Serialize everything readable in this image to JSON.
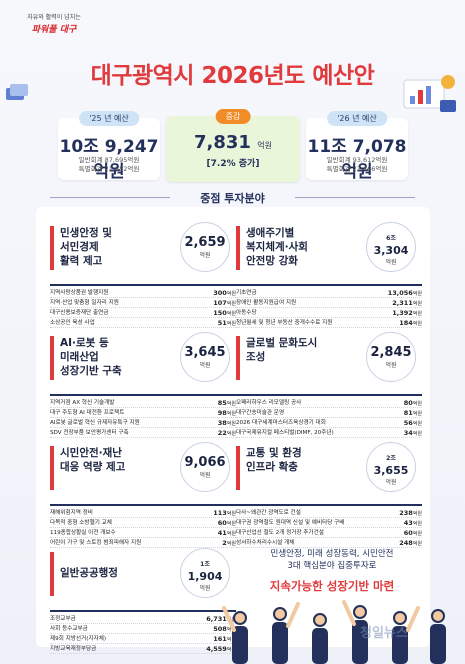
{
  "slogan": {
    "line1": "자유와 활력이 넘치는",
    "line2": "파워풀 대구"
  },
  "title": "대구광역시 2026년도 예산안",
  "budget_25": {
    "label": "'25 년 예산",
    "total": "10조 9,247억원",
    "general": "일반회계 87,695억원",
    "special": "특별회계 21,552억원"
  },
  "increase": {
    "label": "증감",
    "amount": "7,831",
    "unit": "억원",
    "pct": "[7.2% 증가]"
  },
  "budget_26": {
    "label": "'26 년 예산",
    "total": "11조 7,078억원",
    "general": "일반회계 93,612억원",
    "special": "특별회계 23,466억원"
  },
  "focus_title": "중점 투자분야",
  "sections": [
    {
      "name": "민생안정 및\n서민경제\n활력 제고",
      "amount": "2,659",
      "amount_unit": "억원",
      "items": [
        {
          "label": "지역사랑상품권 발행지원",
          "value": "300",
          "unit": "억원"
        },
        {
          "label": "지역·산업 맞춤형 일자리 지원",
          "value": "107",
          "unit": "억원"
        },
        {
          "label": "대구신용보증재단 출연금",
          "value": "150",
          "unit": "억원"
        },
        {
          "label": "소상공인 육성 사업",
          "value": "51",
          "unit": "억원"
        }
      ]
    },
    {
      "name": "생애주기별\n복지체계·사회\n안전망 강화",
      "amount_jo": "6조",
      "amount": "3,304",
      "amount_unit": "억원",
      "items": [
        {
          "label": "기초연금",
          "value": "13,056",
          "unit": "억원"
        },
        {
          "label": "장애인 활동지원급여 지원",
          "value": "2,311",
          "unit": "억원"
        },
        {
          "label": "아동수당",
          "value": "1,392",
          "unit": "억원"
        },
        {
          "label": "청년월세 및 청년 부동산 중개수수료 지원",
          "value": "184",
          "unit": "억원"
        }
      ]
    },
    {
      "name": "AI·로봇 등\n미래산업\n성장기반 구축",
      "amount": "3,645",
      "amount_unit": "억원",
      "items": [
        {
          "label": "지역거점 AX 혁신 기술개발",
          "value": "85",
          "unit": "억원"
        },
        {
          "label": "대구 주도형 AI 대전환 프로젝트",
          "value": "98",
          "unit": "억원"
        },
        {
          "label": "AI로봇 글로벌 혁신 규제자유특구 지원",
          "value": "38",
          "unit": "억원"
        },
        {
          "label": "SDV 전장부품 보안평가센터 구축",
          "value": "22",
          "unit": "억원"
        }
      ]
    },
    {
      "name": "글로벌 문화도시\n조성",
      "amount": "2,845",
      "amount_unit": "억원",
      "items": [
        {
          "label": "오페라하우스 리모델링 공사",
          "value": "80",
          "unit": "억원"
        },
        {
          "label": "대구간송미술관 운영",
          "value": "81",
          "unit": "억원"
        },
        {
          "label": "2026 대구세계마스터즈육상경기 대회",
          "value": "56",
          "unit": "억원"
        },
        {
          "label": "대구국제뮤지컬 페스티벌(DIMF, 20주년)",
          "value": "34",
          "unit": "억원"
        }
      ]
    },
    {
      "name": "시민안전·재난\n대응 역량 제고",
      "amount": "9,066",
      "amount_unit": "억원",
      "items": [
        {
          "label": "재해위험지역 정비",
          "value": "113",
          "unit": "억원"
        },
        {
          "label": "다목적 중형 소방헬기 교체",
          "value": "60",
          "unit": "억원"
        },
        {
          "label": "119종합상황실 이전 개보수",
          "value": "41",
          "unit": "억원"
        },
        {
          "label": "어린이 가구 및 스토킹 범죄피해자 지원",
          "value": "2",
          "unit": "억원"
        }
      ]
    },
    {
      "name": "교통 및 환경\n인프라 확충",
      "amount_jo": "2조",
      "amount": "3,655",
      "amount_unit": "억원",
      "items": [
        {
          "label": "다사~왜관간 광역도로 건설",
          "value": "238",
          "unit": "억원"
        },
        {
          "label": "대구권 광역철도 원대역 신설 및 예비타당 구배",
          "value": "43",
          "unit": "억원"
        },
        {
          "label": "대구산업선 철도 2개 정거장 추가건설",
          "value": "60",
          "unit": "억원"
        },
        {
          "label": "성서하수처리수시설 개체",
          "value": "248",
          "unit": "억원"
        }
      ]
    },
    {
      "name": "일반공공행정",
      "amount_jo": "1조",
      "amount": "1,904",
      "amount_unit": "억원",
      "items": [
        {
          "label": "조정교부금",
          "value": "6,731",
          "unit": "억원"
        },
        {
          "label": "사회 등수교부금",
          "value": "508",
          "unit": "억원"
        },
        {
          "label": "제9회 지방선거(지자체)",
          "value": "161",
          "unit": "억원"
        },
        {
          "label": "지방교육재정부담금",
          "value": "4,559",
          "unit": "억원"
        }
      ]
    }
  ],
  "closing": {
    "line1": "민생안정, 미래 성장동력, 시민안전",
    "line2": "3대 핵심분야 집중투자로",
    "line3": "지속가능한 성장기반 마련"
  },
  "watermark": "청일뉴스",
  "colors": {
    "accent_red": "#e03a3c",
    "navy": "#23305c",
    "increase_bg": "#eaf6d9",
    "pill_blue": "#cfe3f7"
  }
}
